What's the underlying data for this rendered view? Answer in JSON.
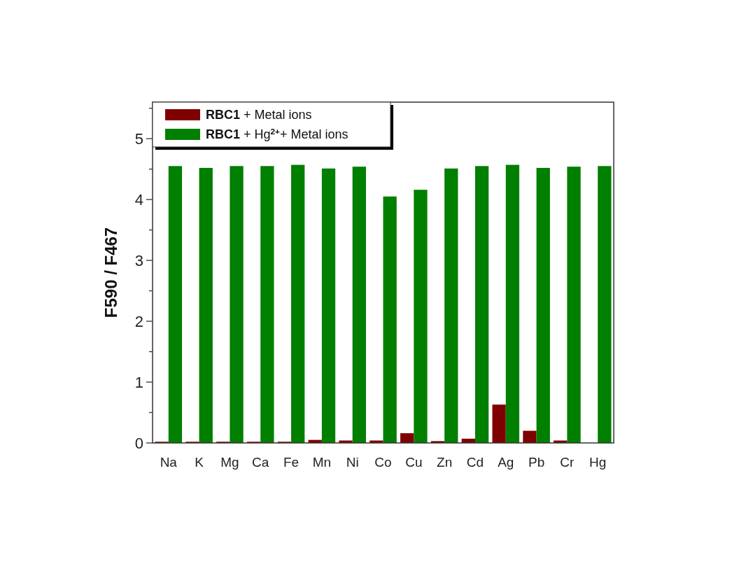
{
  "chart_data": {
    "type": "bar",
    "ylabel": "F590 / F467",
    "categories": [
      "Na",
      "K",
      "Mg",
      "Ca",
      "Fe",
      "Mn",
      "Ni",
      "Co",
      "Cu",
      "Zn",
      "Cd",
      "Ag",
      "Pb",
      "Cr",
      "Hg"
    ],
    "series": [
      {
        "name": "RBC1 + Metal ions",
        "color": "#7f0000",
        "values": [
          0.02,
          0.02,
          0.02,
          0.02,
          0.02,
          0.05,
          0.04,
          0.04,
          0.16,
          0.03,
          0.07,
          0.63,
          0.2,
          0.04,
          0
        ]
      },
      {
        "name": "RBC1 + Hg$^{2+}$+ Metal ions",
        "color": "#007f00",
        "values": [
          4.55,
          4.52,
          4.55,
          4.55,
          4.57,
          4.51,
          4.54,
          4.05,
          4.16,
          4.51,
          4.55,
          4.57,
          4.52,
          4.54,
          4.55
        ]
      }
    ],
    "ylim": [
      0,
      5.6
    ],
    "yticks": [
      0,
      {
        "value": 0.5,
        "label": null
      },
      1,
      {
        "value": 1.5,
        "label": null
      },
      2,
      {
        "value": 2.5,
        "label": null
      },
      3,
      {
        "value": 3.5,
        "label": null
      },
      4,
      {
        "value": 4.5,
        "label": null
      },
      5,
      {
        "value": 5.5,
        "label": null
      }
    ],
    "legend": "top left"
  }
}
